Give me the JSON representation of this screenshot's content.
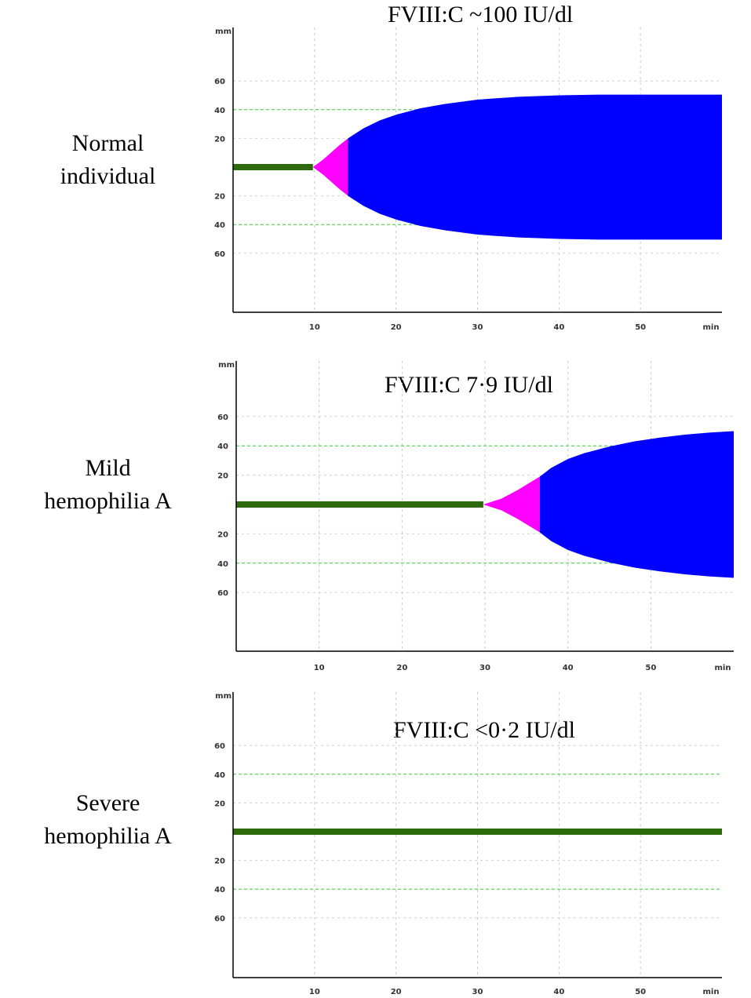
{
  "chart_data": [
    {
      "type": "area",
      "title": "FVIII:C ~100 IU/dl",
      "row_label": [
        "Normal",
        "individual"
      ],
      "x_unit": "min",
      "y_unit": "mm",
      "x_ticks": [
        10,
        20,
        30,
        40,
        50
      ],
      "y_ticks_upper": [
        60,
        40,
        20
      ],
      "y_ticks_lower": [
        20,
        40,
        60
      ],
      "reference_lines_mm": [
        40
      ],
      "xlim": [
        0,
        60
      ],
      "ylim": [
        -75,
        75
      ],
      "series": [
        {
          "name": "",
          "color": "#2d6a0c",
          "x": [
            0,
            9.8
          ],
          "y": [
            0,
            0
          ]
        },
        {
          "name": "",
          "color": "#ff00ff",
          "x": [
            9.8,
            11,
            12,
            13,
            14.1
          ],
          "y": [
            0,
            5,
            10,
            15,
            20
          ]
        },
        {
          "name": "",
          "color": "#0000ff",
          "x": [
            14.1,
            16,
            18,
            20,
            23,
            26,
            30,
            35,
            40,
            45,
            50,
            60
          ],
          "y": [
            20,
            27,
            32.5,
            36.5,
            41,
            44,
            47,
            49,
            50,
            50.5,
            50.5,
            50.5
          ]
        }
      ]
    },
    {
      "type": "area",
      "title": "FVIII:C 7·9 IU/dl",
      "row_label": [
        "Mild",
        "hemophilia A"
      ],
      "x_unit": "min",
      "y_unit": "mm",
      "x_ticks": [
        10,
        20,
        30,
        40,
        50
      ],
      "y_ticks_upper": [
        60,
        40,
        20
      ],
      "y_ticks_lower": [
        20,
        40,
        60
      ],
      "reference_lines_mm": [
        40
      ],
      "xlim": [
        0,
        60
      ],
      "ylim": [
        -75,
        75
      ],
      "series": [
        {
          "name": "",
          "color": "#2d6a0c",
          "x": [
            0,
            29.8
          ],
          "y": [
            0,
            0
          ]
        },
        {
          "name": "",
          "color": "#ff00ff",
          "x": [
            29.8,
            32,
            34,
            36.6
          ],
          "y": [
            0,
            4,
            10,
            19
          ]
        },
        {
          "name": "",
          "color": "#0000ff",
          "x": [
            36.6,
            38,
            40,
            42,
            45,
            48,
            51,
            54,
            57,
            60
          ],
          "y": [
            19,
            25,
            31,
            35,
            39.5,
            43,
            45.5,
            47.5,
            49,
            50
          ]
        }
      ]
    },
    {
      "type": "line",
      "title": "FVIII:C <0·2 IU/dl",
      "row_label": [
        "Severe",
        "hemophilia A"
      ],
      "x_unit": "min",
      "y_unit": "mm",
      "x_ticks": [
        10,
        20,
        30,
        40,
        50
      ],
      "y_ticks_upper": [
        60,
        40,
        20
      ],
      "y_ticks_lower": [
        20,
        40,
        60
      ],
      "reference_lines_mm": [
        40
      ],
      "xlim": [
        0,
        60
      ],
      "ylim": [
        -75,
        75
      ],
      "series": [
        {
          "name": "",
          "color": "#2d6a0c",
          "x": [
            0,
            60
          ],
          "y": [
            0,
            0
          ]
        }
      ]
    }
  ]
}
